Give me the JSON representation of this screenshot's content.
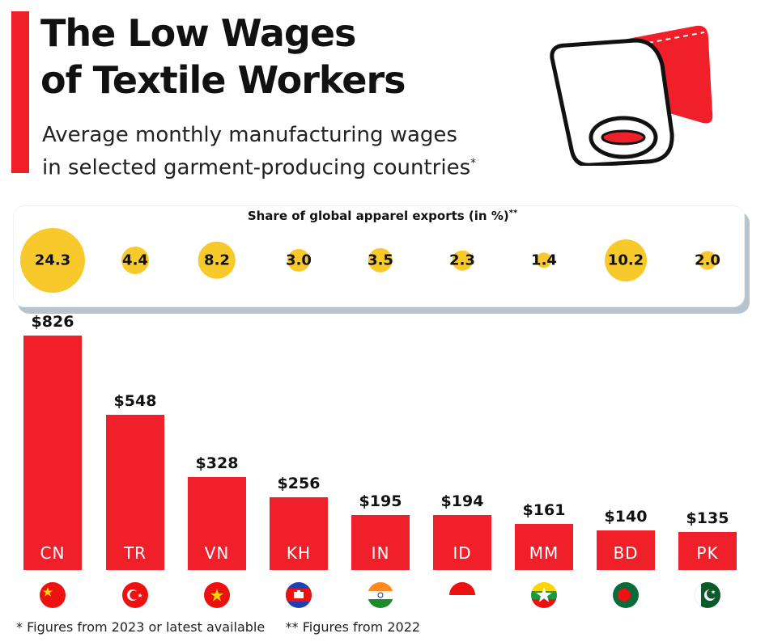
{
  "header": {
    "title_line1": "The Low Wages",
    "title_line2": "of Textile Workers",
    "subtitle_line1": "Average monthly manufacturing wages",
    "subtitle_line2": "in selected garment-producing countries",
    "subtitle_mark": "*"
  },
  "share_panel": {
    "title": "Share of global apparel exports (in %)",
    "title_mark": "**"
  },
  "footnote": "* Figures from 2023 or latest available     ** Figures from 2022",
  "colors": {
    "accent": "#f0202a",
    "bubble": "#f7c92a",
    "panel_shadow": "#b8c3cc"
  },
  "chart_data": {
    "type": "bar",
    "categories": [
      "CN",
      "TR",
      "VN",
      "KH",
      "IN",
      "ID",
      "MM",
      "BD",
      "PK"
    ],
    "values": [
      826,
      548,
      328,
      256,
      195,
      194,
      161,
      140,
      135
    ],
    "value_labels": [
      "$826",
      "$548",
      "$328",
      "$256",
      "$195",
      "$194",
      "$161",
      "$140",
      "$135"
    ],
    "units": "USD per month",
    "flags": [
      "china-flag-icon",
      "turkey-flag-icon",
      "vietnam-flag-icon",
      "cambodia-flag-icon",
      "india-flag-icon",
      "indonesia-flag-icon",
      "myanmar-flag-icon",
      "bangladesh-flag-icon",
      "pakistan-flag-icon"
    ],
    "export_share": {
      "values": [
        24.3,
        4.4,
        8.2,
        3.0,
        3.5,
        2.3,
        1.4,
        10.2,
        2.0
      ],
      "labels": [
        "24.3",
        "4.4",
        "8.2",
        "3.0",
        "3.5",
        "2.3",
        "1.4",
        "10.2",
        "2.0"
      ]
    },
    "ylim": [
      0,
      826
    ],
    "grid": false,
    "title": "The Low Wages of Textile Workers"
  }
}
